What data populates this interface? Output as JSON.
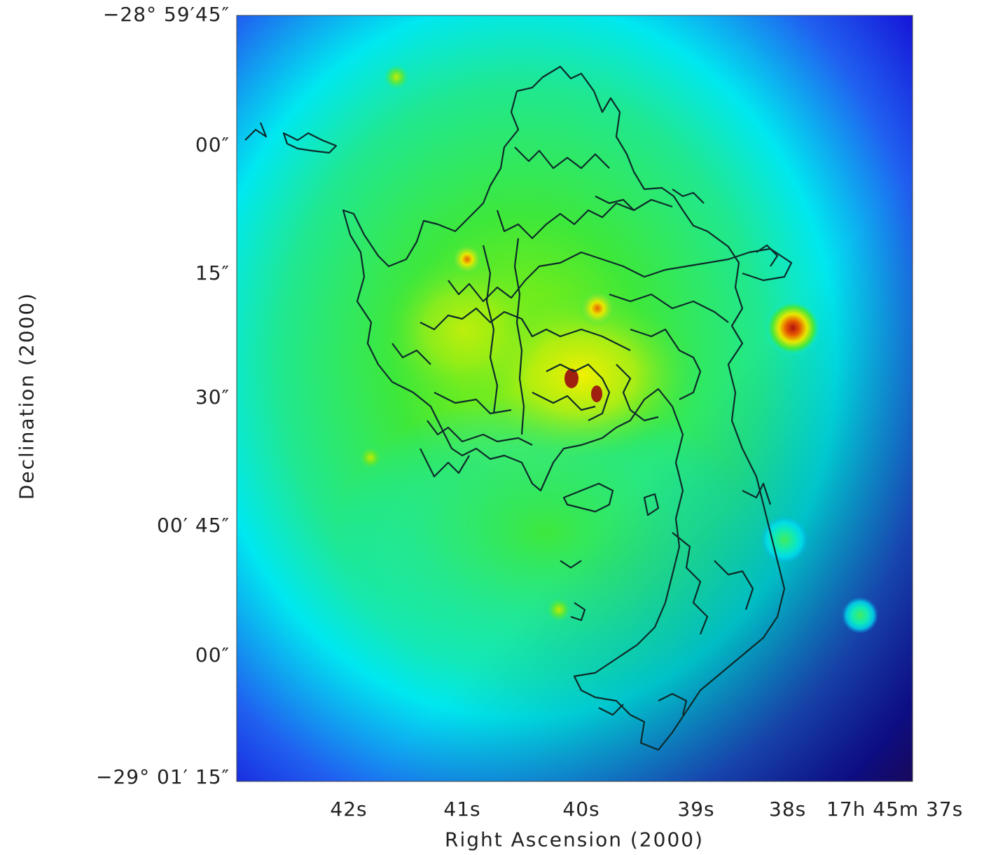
{
  "figure": {
    "xlabel": "Right Ascension (2000)",
    "ylabel": "Declination (2000)",
    "y_ticks": [
      "−28° 59′45″",
      "00″",
      "15″",
      "30″",
      "00′ 45″",
      "00″",
      "−29° 01′ 15″"
    ],
    "x_ticks": [
      "42s",
      "41s",
      "40s",
      "39s",
      "38s",
      "17h 45m 37s"
    ],
    "colormap": [
      "#2a006a",
      "#1a1adc",
      "#00e8f0",
      "#1fe84a",
      "#e8ee00",
      "#cc2200"
    ],
    "contour_color": "#0d2a2a"
  }
}
